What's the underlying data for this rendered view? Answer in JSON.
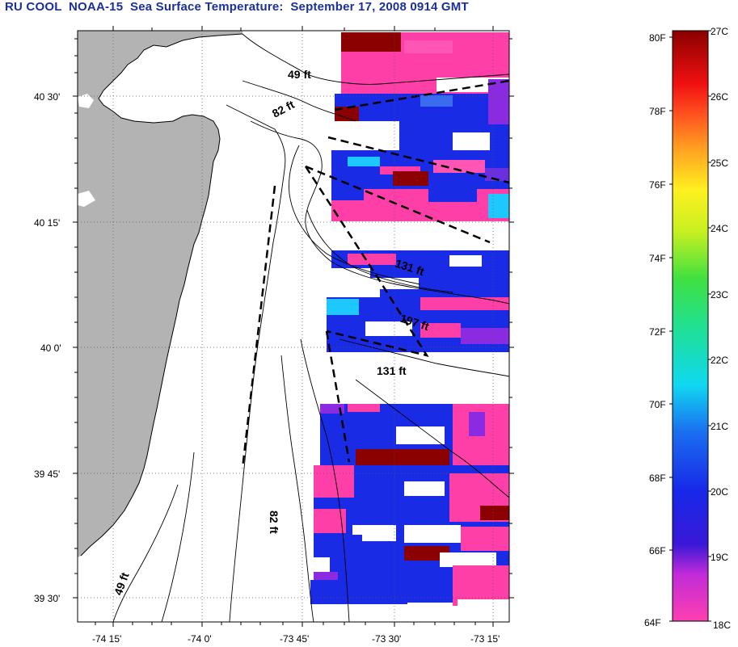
{
  "title": "RU COOL  NOAA-15  Sea Surface Temperature:  September 17, 2008 0914 GMT",
  "lat_labels": [
    "40 30'",
    "40 15'",
    "40 0'",
    "39 45'",
    "39 30'"
  ],
  "lon_labels": [
    "-74 15'",
    "-74 0'",
    "-73 45'",
    "-73 30'",
    "-73 15'"
  ],
  "contour_labels": [
    "49 ft",
    "82 ft",
    "131 ft",
    "197 ft",
    "131 ft",
    "82 ft",
    "49 ft"
  ],
  "colorbar": {
    "fahrenheit": [
      "80F",
      "78F",
      "76F",
      "74F",
      "72F",
      "70F",
      "68F",
      "66F",
      "64F"
    ],
    "celsius": [
      "27C",
      "26C",
      "25C",
      "24C",
      "23C",
      "22C",
      "21C",
      "20C",
      "19C",
      "18C"
    ]
  },
  "colors": {
    "title": "#1a2fa0",
    "land": "#b3b3b3",
    "sst_pink": "#ff3fa8",
    "sst_blue": "#1a2be6",
    "sst_violet": "#8a2be2",
    "sst_dark_red": "#8b0000",
    "sst_cyan": "#1ec8ff"
  }
}
